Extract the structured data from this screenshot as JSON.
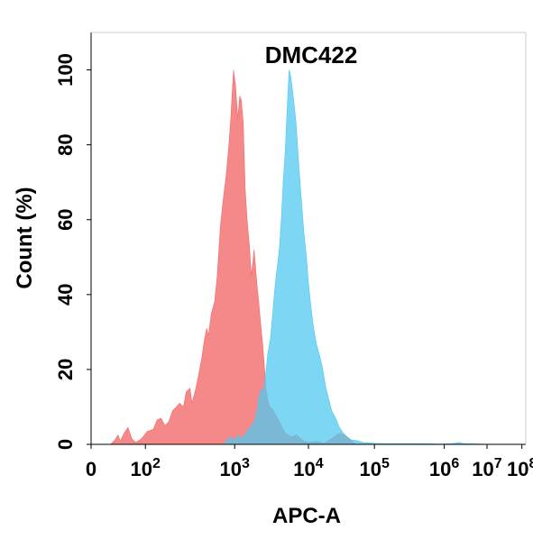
{
  "chart_data": {
    "type": "area",
    "title": "DMC422",
    "xlabel": "APC-A",
    "ylabel": "Count  (%)",
    "xscale": "biexponential",
    "ylim": [
      0,
      110
    ],
    "yticks": [
      0,
      20,
      40,
      60,
      80,
      100
    ],
    "xtick_labels": [
      {
        "base": "0",
        "exp": ""
      },
      {
        "base": "10",
        "exp": "2"
      },
      {
        "base": "10",
        "exp": "3"
      },
      {
        "base": "10",
        "exp": "4"
      },
      {
        "base": "10",
        "exp": "5"
      },
      {
        "base": "10",
        "exp": "6"
      },
      {
        "base": "10",
        "exp": "7"
      },
      {
        "base": "10",
        "exp": "8"
      }
    ],
    "series": [
      {
        "color": "#f26b6b",
        "opacity": 0.8,
        "points": [
          [
            0.5,
            0
          ],
          [
            0.6,
            1
          ],
          [
            0.7,
            2.5
          ],
          [
            0.75,
            0.8
          ],
          [
            0.85,
            3
          ],
          [
            0.95,
            4.5
          ],
          [
            1.05,
            1.5
          ],
          [
            1.15,
            0.5
          ],
          [
            1.3,
            1.5
          ],
          [
            1.45,
            3.5
          ],
          [
            1.6,
            4
          ],
          [
            1.7,
            6.5
          ],
          [
            1.8,
            7
          ],
          [
            1.9,
            5
          ],
          [
            2.0,
            6
          ],
          [
            2.1,
            9
          ],
          [
            2.2,
            10
          ],
          [
            2.28,
            11
          ],
          [
            2.38,
            10
          ],
          [
            2.45,
            14
          ],
          [
            2.55,
            15
          ],
          [
            2.6,
            11
          ],
          [
            2.7,
            15
          ],
          [
            2.78,
            19
          ],
          [
            2.85,
            23
          ],
          [
            2.92,
            28
          ],
          [
            2.98,
            31
          ],
          [
            3.02,
            29
          ],
          [
            3.1,
            35
          ],
          [
            3.18,
            38
          ],
          [
            3.25,
            45
          ],
          [
            3.33,
            58
          ],
          [
            3.4,
            65
          ],
          [
            3.48,
            72
          ],
          [
            3.55,
            80
          ],
          [
            3.6,
            87
          ],
          [
            3.67,
            100
          ],
          [
            3.72,
            96
          ],
          [
            3.78,
            87
          ],
          [
            3.83,
            93
          ],
          [
            3.87,
            92
          ],
          [
            3.92,
            86
          ],
          [
            3.97,
            68
          ],
          [
            4.02,
            60
          ],
          [
            4.08,
            53
          ],
          [
            4.13,
            45
          ],
          [
            4.2,
            52
          ],
          [
            4.27,
            43
          ],
          [
            4.32,
            38
          ],
          [
            4.37,
            32
          ],
          [
            4.42,
            27
          ],
          [
            4.47,
            20
          ],
          [
            4.5,
            15
          ],
          [
            4.55,
            12
          ],
          [
            4.6,
            10
          ],
          [
            4.7,
            9
          ],
          [
            4.8,
            7
          ],
          [
            4.9,
            5
          ],
          [
            5.0,
            3
          ],
          [
            5.15,
            2
          ],
          [
            5.3,
            2.5
          ],
          [
            5.45,
            1
          ],
          [
            5.6,
            0.5
          ],
          [
            5.8,
            0.8
          ],
          [
            6.0,
            0.3
          ],
          [
            6.2,
            1.5
          ],
          [
            6.4,
            3
          ],
          [
            6.6,
            2
          ],
          [
            6.75,
            0.5
          ],
          [
            6.85,
            0
          ]
        ]
      },
      {
        "color": "#50c8f0",
        "opacity": 0.75,
        "points": [
          [
            3.4,
            0
          ],
          [
            3.5,
            1
          ],
          [
            3.6,
            2
          ],
          [
            3.7,
            1
          ],
          [
            3.8,
            2.5
          ],
          [
            3.9,
            1.5
          ],
          [
            3.95,
            2.5
          ],
          [
            4.05,
            4
          ],
          [
            4.1,
            4.5
          ],
          [
            4.2,
            6
          ],
          [
            4.28,
            9
          ],
          [
            4.33,
            13
          ],
          [
            4.4,
            15
          ],
          [
            4.45,
            14
          ],
          [
            4.5,
            19
          ],
          [
            4.55,
            24
          ],
          [
            4.62,
            28
          ],
          [
            4.68,
            35
          ],
          [
            4.72,
            40
          ],
          [
            4.78,
            46
          ],
          [
            4.85,
            52
          ],
          [
            4.9,
            60
          ],
          [
            4.95,
            70
          ],
          [
            5.0,
            78
          ],
          [
            5.05,
            89
          ],
          [
            5.1,
            100
          ],
          [
            5.15,
            98
          ],
          [
            5.22,
            92
          ],
          [
            5.28,
            86
          ],
          [
            5.35,
            75
          ],
          [
            5.42,
            65
          ],
          [
            5.48,
            57
          ],
          [
            5.55,
            50
          ],
          [
            5.6,
            43
          ],
          [
            5.65,
            38
          ],
          [
            5.72,
            32
          ],
          [
            5.8,
            27
          ],
          [
            5.88,
            24
          ],
          [
            5.95,
            21
          ],
          [
            6.0,
            18
          ],
          [
            6.05,
            15
          ],
          [
            6.1,
            13
          ],
          [
            6.2,
            9
          ],
          [
            6.3,
            7
          ],
          [
            6.4,
            4.5
          ],
          [
            6.5,
            3
          ],
          [
            6.6,
            2
          ],
          [
            6.7,
            1.2
          ],
          [
            6.85,
            1
          ],
          [
            7.0,
            0.5
          ],
          [
            7.3,
            0.3
          ],
          [
            7.6,
            0.2
          ],
          [
            8.0,
            0.2
          ],
          [
            8.5,
            0.2
          ],
          [
            9.0,
            0.1
          ],
          [
            9.3,
            0.2
          ],
          [
            9.5,
            0.5
          ],
          [
            9.55,
            0.3
          ],
          [
            9.65,
            0.2
          ],
          [
            10.0,
            0.1
          ],
          [
            10.3,
            0
          ]
        ]
      }
    ]
  }
}
